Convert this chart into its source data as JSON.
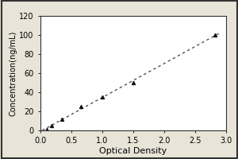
{
  "title": "",
  "xlabel": "Optical Density",
  "ylabel": "Concentration(ng/mL)",
  "xlim": [
    0,
    3.0
  ],
  "ylim": [
    0,
    120
  ],
  "xticks": [
    0,
    0.5,
    1.0,
    1.5,
    2.0,
    2.5,
    3.0
  ],
  "yticks": [
    0,
    20,
    40,
    60,
    80,
    100,
    120
  ],
  "data_x": [
    0.1,
    0.18,
    0.35,
    0.65,
    1.0,
    1.5,
    2.82
  ],
  "data_y": [
    1,
    5,
    12,
    25,
    35,
    50,
    100
  ],
  "fit_x": [
    0.03,
    2.88
  ],
  "fit_y": [
    0.0,
    101.5
  ],
  "line_color": "#555555",
  "marker_color": "#111111",
  "outer_background": "#e8e4d8",
  "inner_background": "#ffffff",
  "font_size": 7,
  "label_font_size": 8,
  "spine_color": "#333333"
}
